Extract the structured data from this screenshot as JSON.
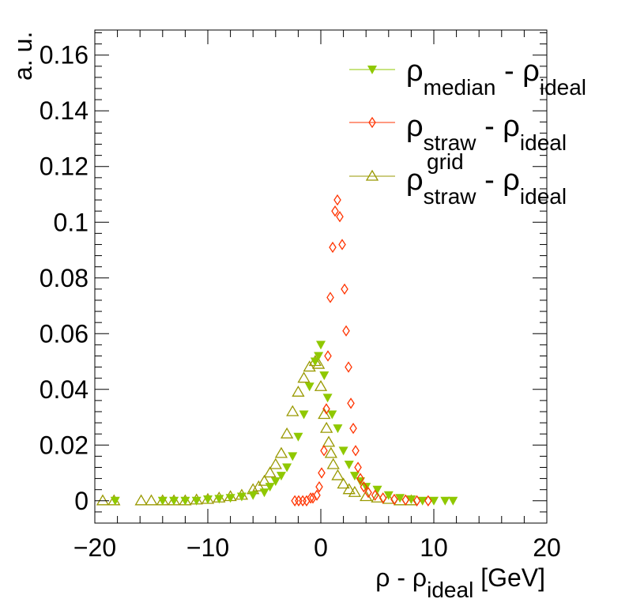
{
  "chart_data": {
    "type": "scatter",
    "title": "",
    "xlabel_parts": {
      "main": "ρ - ρ",
      "sub": "ideal",
      "unit": " [GeV]"
    },
    "ylabel": "a. u.",
    "xlim": [
      -20,
      20
    ],
    "ylim": [
      -0.008,
      0.169
    ],
    "x_ticks": [
      "−20",
      "−10",
      "0",
      "10",
      "20"
    ],
    "x_tick_values": [
      -20,
      -10,
      0,
      10,
      20
    ],
    "y_ticks": [
      "0",
      "0.02",
      "0.04",
      "0.06",
      "0.08",
      "0.1",
      "0.12",
      "0.14",
      "0.16"
    ],
    "y_tick_values": [
      0,
      0.02,
      0.04,
      0.06,
      0.08,
      0.1,
      0.12,
      0.14,
      0.16
    ],
    "grid": false,
    "legend_position": "top-right",
    "series": [
      {
        "name": "ρ_median - ρ_ideal",
        "legend": {
          "a": "ρ",
          "a_sub": "median",
          "mid": " - ρ",
          "b_sub": "ideal"
        },
        "marker": "filled-triangle-down",
        "color": "#8fc800",
        "x": [
          -18.2,
          -14,
          -13,
          -12,
          -11,
          -10,
          -9,
          -8,
          -7,
          -6,
          -5,
          -4.5,
          -4,
          -3.5,
          -3,
          -2.5,
          -2,
          -1.5,
          -1,
          -0.5,
          -0.2,
          0,
          0.3,
          0.6,
          1,
          1.5,
          2,
          2.5,
          3,
          3.5,
          4,
          5,
          6,
          7,
          8,
          9,
          10,
          11,
          11.7
        ],
        "y": [
          0,
          0,
          0,
          0,
          0,
          0.0005,
          0.0007,
          0.001,
          0.0015,
          0.002,
          0.003,
          0.005,
          0.007,
          0.009,
          0.012,
          0.016,
          0.023,
          0.031,
          0.041,
          0.05,
          0.052,
          0.056,
          0.045,
          0.037,
          0.031,
          0.026,
          0.018,
          0.013,
          0.009,
          0.007,
          0.005,
          0.004,
          0.002,
          0.001,
          0.0005,
          0,
          0,
          0,
          0
        ]
      },
      {
        "name": "ρ_straw - ρ_ideal",
        "legend": {
          "a": "ρ",
          "a_sub": "straw",
          "mid": " - ρ",
          "b_sub": "ideal"
        },
        "marker": "open-diamond",
        "color": "#ff3300",
        "x": [
          -2.3,
          -1.96,
          -1.6,
          -1.26,
          -0.9,
          -0.7,
          -0.35,
          -0.14,
          0.07,
          0.28,
          0.49,
          0.63,
          0.84,
          1.05,
          1.26,
          1.47,
          1.68,
          1.89,
          2.1,
          2.24,
          2.45,
          2.66,
          2.87,
          3.08,
          3.29,
          3.5,
          3.8,
          4.2,
          4.8,
          5.5,
          6.5,
          7.5,
          8.5,
          9.5
        ],
        "y": [
          0,
          0,
          0,
          0,
          0.001,
          0.001,
          0.002,
          0.005,
          0.01,
          0.018,
          0.033,
          0.052,
          0.073,
          0.091,
          0.104,
          0.108,
          0.102,
          0.092,
          0.076,
          0.061,
          0.048,
          0.035,
          0.026,
          0.018,
          0.012,
          0.008,
          0.005,
          0.003,
          0.002,
          0.001,
          0.0005,
          0.0003,
          0,
          0
        ]
      },
      {
        "name": "ρ^grid_straw - ρ_ideal",
        "legend": {
          "a": "ρ",
          "a_sub": "straw",
          "a_sup": "grid",
          "mid": " - ρ",
          "b_sub": "ideal"
        },
        "marker": "open-triangle-up",
        "color": "#999900",
        "x": [
          -19.3,
          -18.3,
          -15.9,
          -15,
          -14,
          -13,
          -12,
          -11,
          -10,
          -9,
          -8,
          -7,
          -6,
          -5.5,
          -5,
          -4.5,
          -4,
          -3.5,
          -3,
          -2.5,
          -2,
          -1.5,
          -1,
          -0.5,
          -0.2,
          0,
          0.3,
          0.5,
          0.7,
          0.9,
          1.1,
          1.5,
          2,
          2.5,
          3,
          4,
          5,
          6,
          7,
          8
        ],
        "y": [
          0,
          0,
          0,
          0,
          0,
          0,
          0,
          0.0003,
          0.0005,
          0.001,
          0.0015,
          0.002,
          0.004,
          0.005,
          0.007,
          0.01,
          0.013,
          0.017,
          0.024,
          0.032,
          0.039,
          0.044,
          0.048,
          0.05,
          0.049,
          0.041,
          0.031,
          0.026,
          0.021,
          0.017,
          0.013,
          0.009,
          0.006,
          0.004,
          0.003,
          0.0015,
          0.001,
          0.0005,
          0,
          0
        ]
      }
    ]
  }
}
